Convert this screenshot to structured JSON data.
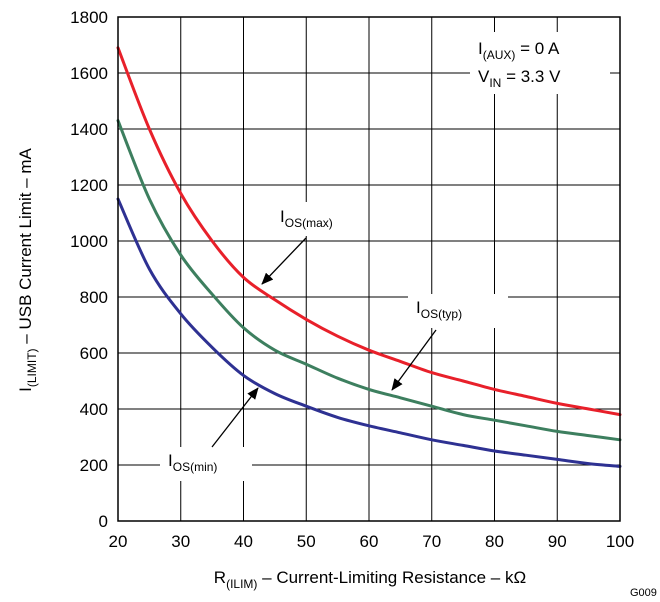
{
  "chart_data": {
    "type": "line",
    "xlabel": {
      "main": "R",
      "sub": "(ILIM)",
      "rest": " – Current-Limiting Resistance – kΩ"
    },
    "ylabel": {
      "main": "I",
      "sub": "(LIMIT)",
      "rest": " – USB Current Limit – mA"
    },
    "xlim": [
      20,
      100
    ],
    "ylim": [
      0,
      1800
    ],
    "x_ticks": [
      20,
      30,
      40,
      50,
      60,
      70,
      80,
      90,
      100
    ],
    "y_ticks": [
      0,
      200,
      400,
      600,
      800,
      1000,
      1200,
      1400,
      1600,
      1800
    ],
    "grid": true,
    "conditions": [
      {
        "main": "I",
        "sub": "(AUX)",
        "rest": " = 0 A"
      },
      {
        "main": "V",
        "sub": "IN",
        "rest": " = 3.3 V"
      }
    ],
    "figure_id": "G009",
    "x": [
      20,
      25,
      30,
      35,
      40,
      45,
      50,
      55,
      60,
      65,
      70,
      75,
      80,
      85,
      90,
      95,
      100
    ],
    "series": [
      {
        "name": {
          "main": "I",
          "sub": "OS(max)"
        },
        "color": "#e8202a",
        "values": [
          1690,
          1400,
          1170,
          1000,
          870,
          790,
          720,
          660,
          610,
          570,
          530,
          500,
          470,
          445,
          420,
          400,
          380
        ]
      },
      {
        "name": {
          "main": "I",
          "sub": "OS(typ)"
        },
        "color": "#3d7f5f",
        "values": [
          1430,
          1150,
          950,
          810,
          690,
          610,
          560,
          510,
          470,
          440,
          410,
          380,
          360,
          340,
          320,
          305,
          290
        ]
      },
      {
        "name": {
          "main": "I",
          "sub": "OS(min)"
        },
        "color": "#2e3192",
        "values": [
          1150,
          900,
          740,
          620,
          520,
          455,
          410,
          370,
          340,
          315,
          290,
          270,
          250,
          235,
          220,
          205,
          195
        ]
      }
    ]
  }
}
